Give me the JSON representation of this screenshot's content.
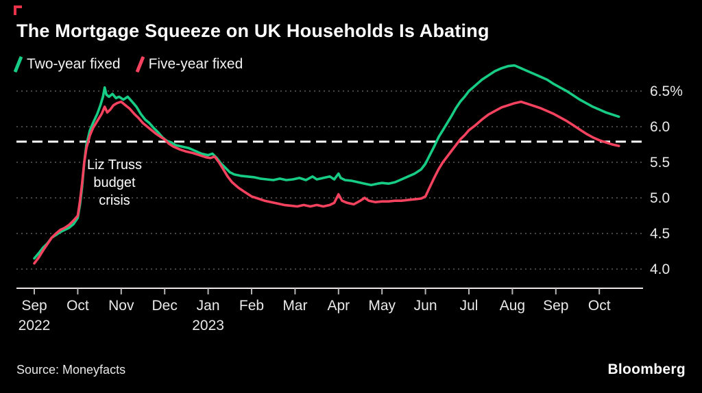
{
  "chart_data": {
    "type": "line",
    "title": "The Mortgage Squeeze on UK Households Is Abating",
    "unit": "percent",
    "legend_position": "top-left",
    "x_axis": {
      "ticks": [
        {
          "label": "Sep",
          "year": "2022"
        },
        {
          "label": "Oct"
        },
        {
          "label": "Nov"
        },
        {
          "label": "Dec"
        },
        {
          "label": "Jan",
          "year": "2023"
        },
        {
          "label": "Feb"
        },
        {
          "label": "Mar"
        },
        {
          "label": "Apr"
        },
        {
          "label": "May"
        },
        {
          "label": "Jun"
        },
        {
          "label": "Jul"
        },
        {
          "label": "Aug"
        },
        {
          "label": "Sep"
        },
        {
          "label": "Oct"
        }
      ]
    },
    "y_axis": {
      "min": 4.0,
      "max": 6.5,
      "step": 0.5,
      "tick_labels": [
        "4.0",
        "4.5",
        "5.0",
        "5.5",
        "6.0",
        "6.5%"
      ],
      "grid": "dotted"
    },
    "reference_line": {
      "value": 5.79,
      "style": "dashed",
      "color": "#ffffff"
    },
    "annotation": {
      "text": "Liz Truss\nbudget\ncrisis",
      "x_month": 1.85,
      "y_value": 5.2
    },
    "colors": {
      "grid": "#5f5f5f",
      "axis": "#efe7e7",
      "tick_label": "#e9e9e9"
    },
    "series": [
      {
        "name": "Two-year fixed",
        "color": "#17cc84",
        "points": [
          [
            0.0,
            4.15
          ],
          [
            0.1,
            4.22
          ],
          [
            0.2,
            4.3
          ],
          [
            0.3,
            4.36
          ],
          [
            0.4,
            4.44
          ],
          [
            0.5,
            4.48
          ],
          [
            0.6,
            4.52
          ],
          [
            0.7,
            4.55
          ],
          [
            0.8,
            4.58
          ],
          [
            0.9,
            4.63
          ],
          [
            1.0,
            4.72
          ],
          [
            1.05,
            4.9
          ],
          [
            1.1,
            5.15
          ],
          [
            1.15,
            5.5
          ],
          [
            1.2,
            5.75
          ],
          [
            1.28,
            5.95
          ],
          [
            1.35,
            6.05
          ],
          [
            1.45,
            6.18
          ],
          [
            1.52,
            6.3
          ],
          [
            1.58,
            6.42
          ],
          [
            1.62,
            6.55
          ],
          [
            1.66,
            6.45
          ],
          [
            1.72,
            6.42
          ],
          [
            1.8,
            6.46
          ],
          [
            1.88,
            6.4
          ],
          [
            1.95,
            6.42
          ],
          [
            2.05,
            6.38
          ],
          [
            2.15,
            6.42
          ],
          [
            2.25,
            6.35
          ],
          [
            2.35,
            6.28
          ],
          [
            2.45,
            6.18
          ],
          [
            2.55,
            6.1
          ],
          [
            2.65,
            6.05
          ],
          [
            2.75,
            5.98
          ],
          [
            2.85,
            5.92
          ],
          [
            2.95,
            5.85
          ],
          [
            3.05,
            5.8
          ],
          [
            3.15,
            5.78
          ],
          [
            3.25,
            5.74
          ],
          [
            3.4,
            5.72
          ],
          [
            3.55,
            5.7
          ],
          [
            3.7,
            5.66
          ],
          [
            3.85,
            5.62
          ],
          [
            4.0,
            5.6
          ],
          [
            4.1,
            5.62
          ],
          [
            4.2,
            5.56
          ],
          [
            4.3,
            5.48
          ],
          [
            4.4,
            5.42
          ],
          [
            4.5,
            5.36
          ],
          [
            4.6,
            5.33
          ],
          [
            4.75,
            5.31
          ],
          [
            4.9,
            5.3
          ],
          [
            5.05,
            5.29
          ],
          [
            5.2,
            5.27
          ],
          [
            5.35,
            5.26
          ],
          [
            5.5,
            5.25
          ],
          [
            5.65,
            5.27
          ],
          [
            5.8,
            5.25
          ],
          [
            5.95,
            5.26
          ],
          [
            6.1,
            5.28
          ],
          [
            6.25,
            5.25
          ],
          [
            6.4,
            5.3
          ],
          [
            6.5,
            5.26
          ],
          [
            6.65,
            5.28
          ],
          [
            6.8,
            5.3
          ],
          [
            6.9,
            5.26
          ],
          [
            7.0,
            5.34
          ],
          [
            7.05,
            5.28
          ],
          [
            7.15,
            5.25
          ],
          [
            7.3,
            5.24
          ],
          [
            7.45,
            5.22
          ],
          [
            7.6,
            5.2
          ],
          [
            7.75,
            5.18
          ],
          [
            7.9,
            5.2
          ],
          [
            8.0,
            5.21
          ],
          [
            8.15,
            5.2
          ],
          [
            8.3,
            5.22
          ],
          [
            8.45,
            5.26
          ],
          [
            8.6,
            5.3
          ],
          [
            8.75,
            5.34
          ],
          [
            8.9,
            5.4
          ],
          [
            9.0,
            5.48
          ],
          [
            9.1,
            5.6
          ],
          [
            9.2,
            5.72
          ],
          [
            9.3,
            5.85
          ],
          [
            9.4,
            5.95
          ],
          [
            9.5,
            6.05
          ],
          [
            9.6,
            6.15
          ],
          [
            9.7,
            6.26
          ],
          [
            9.8,
            6.35
          ],
          [
            9.9,
            6.42
          ],
          [
            10.0,
            6.5
          ],
          [
            10.15,
            6.58
          ],
          [
            10.3,
            6.66
          ],
          [
            10.45,
            6.72
          ],
          [
            10.6,
            6.78
          ],
          [
            10.75,
            6.82
          ],
          [
            10.9,
            6.85
          ],
          [
            11.05,
            6.86
          ],
          [
            11.2,
            6.82
          ],
          [
            11.35,
            6.78
          ],
          [
            11.5,
            6.74
          ],
          [
            11.65,
            6.7
          ],
          [
            11.8,
            6.66
          ],
          [
            11.95,
            6.6
          ],
          [
            12.1,
            6.55
          ],
          [
            12.25,
            6.5
          ],
          [
            12.4,
            6.44
          ],
          [
            12.55,
            6.38
          ],
          [
            12.7,
            6.33
          ],
          [
            12.85,
            6.28
          ],
          [
            13.0,
            6.24
          ],
          [
            13.15,
            6.2
          ],
          [
            13.3,
            6.17
          ],
          [
            13.45,
            6.14
          ]
        ]
      },
      {
        "name": "Five-year fixed",
        "color": "#f5425f",
        "points": [
          [
            0.0,
            4.08
          ],
          [
            0.1,
            4.16
          ],
          [
            0.2,
            4.26
          ],
          [
            0.3,
            4.35
          ],
          [
            0.4,
            4.44
          ],
          [
            0.5,
            4.5
          ],
          [
            0.6,
            4.55
          ],
          [
            0.7,
            4.58
          ],
          [
            0.8,
            4.62
          ],
          [
            0.9,
            4.68
          ],
          [
            1.0,
            4.75
          ],
          [
            1.05,
            4.95
          ],
          [
            1.1,
            5.2
          ],
          [
            1.15,
            5.5
          ],
          [
            1.2,
            5.7
          ],
          [
            1.28,
            5.88
          ],
          [
            1.35,
            5.98
          ],
          [
            1.45,
            6.08
          ],
          [
            1.55,
            6.18
          ],
          [
            1.62,
            6.28
          ],
          [
            1.68,
            6.2
          ],
          [
            1.75,
            6.24
          ],
          [
            1.82,
            6.3
          ],
          [
            1.9,
            6.33
          ],
          [
            2.0,
            6.35
          ],
          [
            2.1,
            6.3
          ],
          [
            2.2,
            6.25
          ],
          [
            2.3,
            6.18
          ],
          [
            2.4,
            6.12
          ],
          [
            2.5,
            6.05
          ],
          [
            2.6,
            6.0
          ],
          [
            2.7,
            5.95
          ],
          [
            2.8,
            5.9
          ],
          [
            2.9,
            5.86
          ],
          [
            3.0,
            5.82
          ],
          [
            3.1,
            5.76
          ],
          [
            3.2,
            5.72
          ],
          [
            3.35,
            5.68
          ],
          [
            3.5,
            5.65
          ],
          [
            3.65,
            5.63
          ],
          [
            3.8,
            5.6
          ],
          [
            3.95,
            5.57
          ],
          [
            4.05,
            5.56
          ],
          [
            4.15,
            5.58
          ],
          [
            4.25,
            5.5
          ],
          [
            4.35,
            5.4
          ],
          [
            4.45,
            5.3
          ],
          [
            4.55,
            5.22
          ],
          [
            4.7,
            5.14
          ],
          [
            4.85,
            5.08
          ],
          [
            5.0,
            5.02
          ],
          [
            5.15,
            4.99
          ],
          [
            5.3,
            4.96
          ],
          [
            5.45,
            4.94
          ],
          [
            5.6,
            4.92
          ],
          [
            5.75,
            4.9
          ],
          [
            5.9,
            4.89
          ],
          [
            6.05,
            4.88
          ],
          [
            6.2,
            4.9
          ],
          [
            6.35,
            4.88
          ],
          [
            6.5,
            4.9
          ],
          [
            6.65,
            4.88
          ],
          [
            6.8,
            4.9
          ],
          [
            6.9,
            4.93
          ],
          [
            7.0,
            5.05
          ],
          [
            7.08,
            4.96
          ],
          [
            7.2,
            4.93
          ],
          [
            7.35,
            4.91
          ],
          [
            7.5,
            4.96
          ],
          [
            7.6,
            5.0
          ],
          [
            7.7,
            4.96
          ],
          [
            7.85,
            4.94
          ],
          [
            8.0,
            4.95
          ],
          [
            8.15,
            4.95
          ],
          [
            8.3,
            4.96
          ],
          [
            8.45,
            4.96
          ],
          [
            8.6,
            4.97
          ],
          [
            8.75,
            4.98
          ],
          [
            8.9,
            4.99
          ],
          [
            9.0,
            5.02
          ],
          [
            9.1,
            5.15
          ],
          [
            9.2,
            5.28
          ],
          [
            9.3,
            5.4
          ],
          [
            9.4,
            5.5
          ],
          [
            9.5,
            5.58
          ],
          [
            9.6,
            5.66
          ],
          [
            9.7,
            5.74
          ],
          [
            9.8,
            5.82
          ],
          [
            9.9,
            5.88
          ],
          [
            10.0,
            5.95
          ],
          [
            10.15,
            6.02
          ],
          [
            10.3,
            6.1
          ],
          [
            10.45,
            6.17
          ],
          [
            10.6,
            6.22
          ],
          [
            10.75,
            6.27
          ],
          [
            10.9,
            6.3
          ],
          [
            11.05,
            6.33
          ],
          [
            11.2,
            6.35
          ],
          [
            11.35,
            6.32
          ],
          [
            11.5,
            6.29
          ],
          [
            11.65,
            6.26
          ],
          [
            11.8,
            6.22
          ],
          [
            11.95,
            6.18
          ],
          [
            12.1,
            6.13
          ],
          [
            12.25,
            6.08
          ],
          [
            12.4,
            6.02
          ],
          [
            12.55,
            5.96
          ],
          [
            12.7,
            5.9
          ],
          [
            12.85,
            5.85
          ],
          [
            13.0,
            5.81
          ],
          [
            13.15,
            5.78
          ],
          [
            13.3,
            5.75
          ],
          [
            13.45,
            5.73
          ]
        ]
      }
    ]
  },
  "footer": {
    "source": "Source: Moneyfacts",
    "brand": "Bloomberg"
  }
}
